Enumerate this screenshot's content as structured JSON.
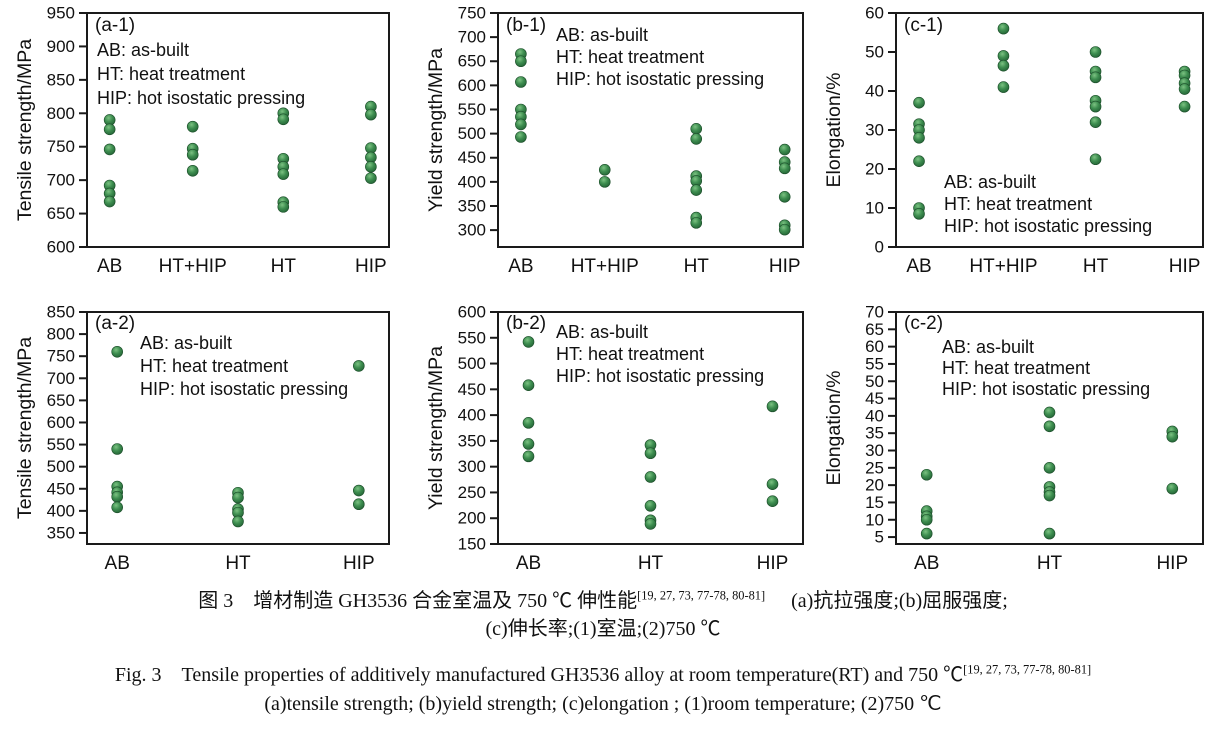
{
  "colors": {
    "background": "#ffffff",
    "axis": "#1a1a1a",
    "text": "#111111",
    "marker_highlight": "#7cc282",
    "marker_mid": "#3e8e50",
    "marker_dark": "#1f5c31",
    "marker_outline": "#1d4f2b"
  },
  "chart_data": [
    {
      "type": "scatter",
      "panel_label": "(a-1)",
      "ylabel": "Tensile strength/MPa",
      "axis_top": 950,
      "axis_bottom": 600,
      "yticks": [
        950,
        900,
        850,
        800,
        750,
        700,
        650,
        600
      ],
      "categories": [
        "AB",
        "HT+HIP",
        "HT",
        "HIP"
      ],
      "series": [
        {
          "category": "AB",
          "values": [
            790,
            776,
            746,
            692,
            680,
            668
          ]
        },
        {
          "category": "HT+HIP",
          "values": [
            780,
            747,
            738,
            714
          ]
        },
        {
          "category": "HT",
          "values": [
            800,
            791,
            732,
            720,
            709,
            667,
            660
          ]
        },
        {
          "category": "HIP",
          "values": [
            810,
            798,
            748,
            734,
            720,
            703
          ]
        }
      ],
      "legend_lines": [
        "AB: as-built",
        "HT: heat treatment",
        "HIP: hot isostatic pressing"
      ],
      "legend_position": "upper-left"
    },
    {
      "type": "scatter",
      "panel_label": "(b-1)",
      "ylabel": "Yield strength/MPa",
      "axis_top": 750,
      "axis_bottom": 265,
      "yticks": [
        750,
        700,
        650,
        600,
        550,
        500,
        450,
        400,
        350,
        300
      ],
      "categories": [
        "AB",
        "HT+HIP",
        "HT",
        "HIP"
      ],
      "series": [
        {
          "category": "AB",
          "values": [
            665,
            650,
            607,
            550,
            535,
            519,
            493
          ]
        },
        {
          "category": "HT+HIP",
          "values": [
            425,
            400
          ]
        },
        {
          "category": "HT",
          "values": [
            510,
            489,
            412,
            402,
            383,
            326,
            315
          ]
        },
        {
          "category": "HIP",
          "values": [
            467,
            441,
            428,
            369,
            310,
            301
          ]
        }
      ],
      "legend_lines": [
        "AB: as-built",
        "HT: heat treatment",
        "HIP: hot isostatic pressing"
      ],
      "legend_position": "upper-right-of-panel"
    },
    {
      "type": "scatter",
      "panel_label": "(c-1)",
      "ylabel": "Elongation/%",
      "axis_top": 60,
      "axis_bottom": 0,
      "yticks": [
        60,
        50,
        40,
        30,
        20,
        10,
        0
      ],
      "categories": [
        "AB",
        "HT+HIP",
        "HT",
        "HIP"
      ],
      "series": [
        {
          "category": "AB",
          "values": [
            37,
            31.5,
            30,
            28,
            22,
            10,
            8.5
          ]
        },
        {
          "category": "HT+HIP",
          "values": [
            56,
            49,
            46.5,
            41
          ]
        },
        {
          "category": "HT",
          "values": [
            50,
            45,
            43.5,
            37.5,
            36,
            32,
            22.5
          ]
        },
        {
          "category": "HIP",
          "values": [
            45,
            44,
            42,
            40.5,
            36
          ]
        }
      ],
      "legend_lines": [
        "AB: as-built",
        "HT: heat treatment",
        "HIP: hot isostatic pressing"
      ],
      "legend_position": "lower-center"
    },
    {
      "type": "scatter",
      "panel_label": "(a-2)",
      "ylabel": "Tensile strength/MPa",
      "axis_top": 850,
      "axis_bottom": 325,
      "yticks": [
        850,
        800,
        750,
        700,
        650,
        600,
        550,
        500,
        450,
        400,
        350
      ],
      "categories": [
        "AB",
        "HT",
        "HIP"
      ],
      "series": [
        {
          "category": "AB",
          "values": [
            760,
            540,
            455,
            442,
            432,
            408
          ]
        },
        {
          "category": "HT",
          "values": [
            441,
            430,
            404,
            396,
            376
          ]
        },
        {
          "category": "HIP",
          "values": [
            728,
            446,
            415
          ]
        }
      ],
      "legend_lines": [
        "AB: as-built",
        "HT: heat treatment",
        "HIP: hot isostatic pressing"
      ],
      "legend_position": "upper-left"
    },
    {
      "type": "scatter",
      "panel_label": "(b-2)",
      "ylabel": "Yield strength/MPa",
      "axis_top": 600,
      "axis_bottom": 150,
      "yticks": [
        600,
        550,
        500,
        450,
        400,
        350,
        300,
        250,
        200,
        150
      ],
      "categories": [
        "AB",
        "HT",
        "HIP"
      ],
      "series": [
        {
          "category": "AB",
          "values": [
            542,
            458,
            385,
            344,
            320
          ]
        },
        {
          "category": "HT",
          "values": [
            342,
            326,
            280,
            224,
            196,
            189
          ]
        },
        {
          "category": "HIP",
          "values": [
            417,
            266,
            233
          ]
        }
      ],
      "legend_lines": [
        "AB: as-built",
        "HT: heat treatment",
        "HIP: hot isostatic pressing"
      ],
      "legend_position": "upper-right-of-panel"
    },
    {
      "type": "scatter",
      "panel_label": "(c-2)",
      "ylabel": "Elongation/%",
      "axis_top": 70,
      "axis_bottom": 3,
      "yticks": [
        70,
        65,
        60,
        55,
        50,
        45,
        40,
        35,
        30,
        25,
        20,
        15,
        10,
        5
      ],
      "categories": [
        "AB",
        "HT",
        "HIP"
      ],
      "series": [
        {
          "category": "AB",
          "values": [
            23,
            12.5,
            11,
            10,
            6
          ]
        },
        {
          "category": "HT",
          "values": [
            41,
            37,
            25,
            19.5,
            18,
            17,
            6
          ]
        },
        {
          "category": "HIP",
          "values": [
            35.5,
            34,
            19
          ]
        }
      ],
      "legend_lines": [
        "AB: as-built",
        "HT: heat treatment",
        "HIP: hot isostatic pressing"
      ],
      "legend_position": "upper-left"
    }
  ],
  "caption": {
    "zh": {
      "line1_main": "图 3　增材制造 GH3536 合金室温及 750 ℃ 伸性能",
      "line1_sup": "[19, 27, 73, 77-78, 80-81]",
      "line1_tail": "(a)抗拉强度;(b)屈服强度;",
      "line2": "(c)伸长率;(1)室温;(2)750 ℃"
    },
    "en": {
      "line1_main": "Fig. 3　Tensile properties of additively manufactured GH3536 alloy at room temperature(RT) and 750 ℃",
      "line1_sup": "[19, 27, 73, 77-78, 80-81]",
      "line2": "(a)tensile strength; (b)yield strength; (c)elongation ; (1)room temperature; (2)750 ℃"
    }
  }
}
